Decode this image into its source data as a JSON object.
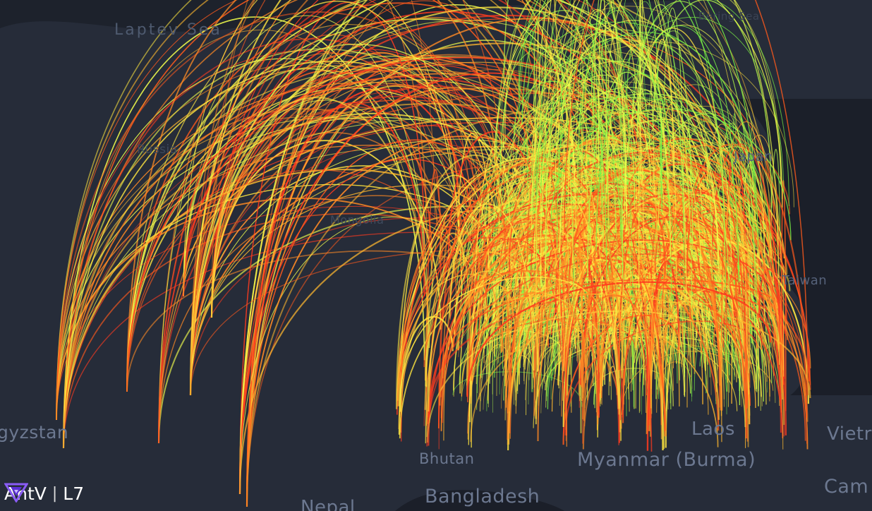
{
  "map": {
    "labels": {
      "laptev_sea": "Laptev Sea",
      "beijing_sea": "Bering Sea",
      "russia": "Russia",
      "mongolia": "Mongolia",
      "japan": "Japan",
      "taiwan": "Taiwan",
      "kyrgyzstan": "gyzstan",
      "laos": "Laos",
      "vietnam": "Vietr",
      "bhutan": "Bhutan",
      "myanmar": "Myanmar (Burma)",
      "cambodia": "Cam",
      "bangladesh": "Bangladesh",
      "nepal": "Nepal"
    },
    "arc_colors": [
      "#ff3b1f",
      "#ff5a1c",
      "#ff8a24",
      "#ffb82e",
      "#ffe640",
      "#f2ff4c",
      "#b8ff4a",
      "#7cf545"
    ],
    "background_color": "#1d222c",
    "land_color": "#262c39"
  },
  "logo": {
    "brand": "AntV",
    "product": "L7"
  }
}
